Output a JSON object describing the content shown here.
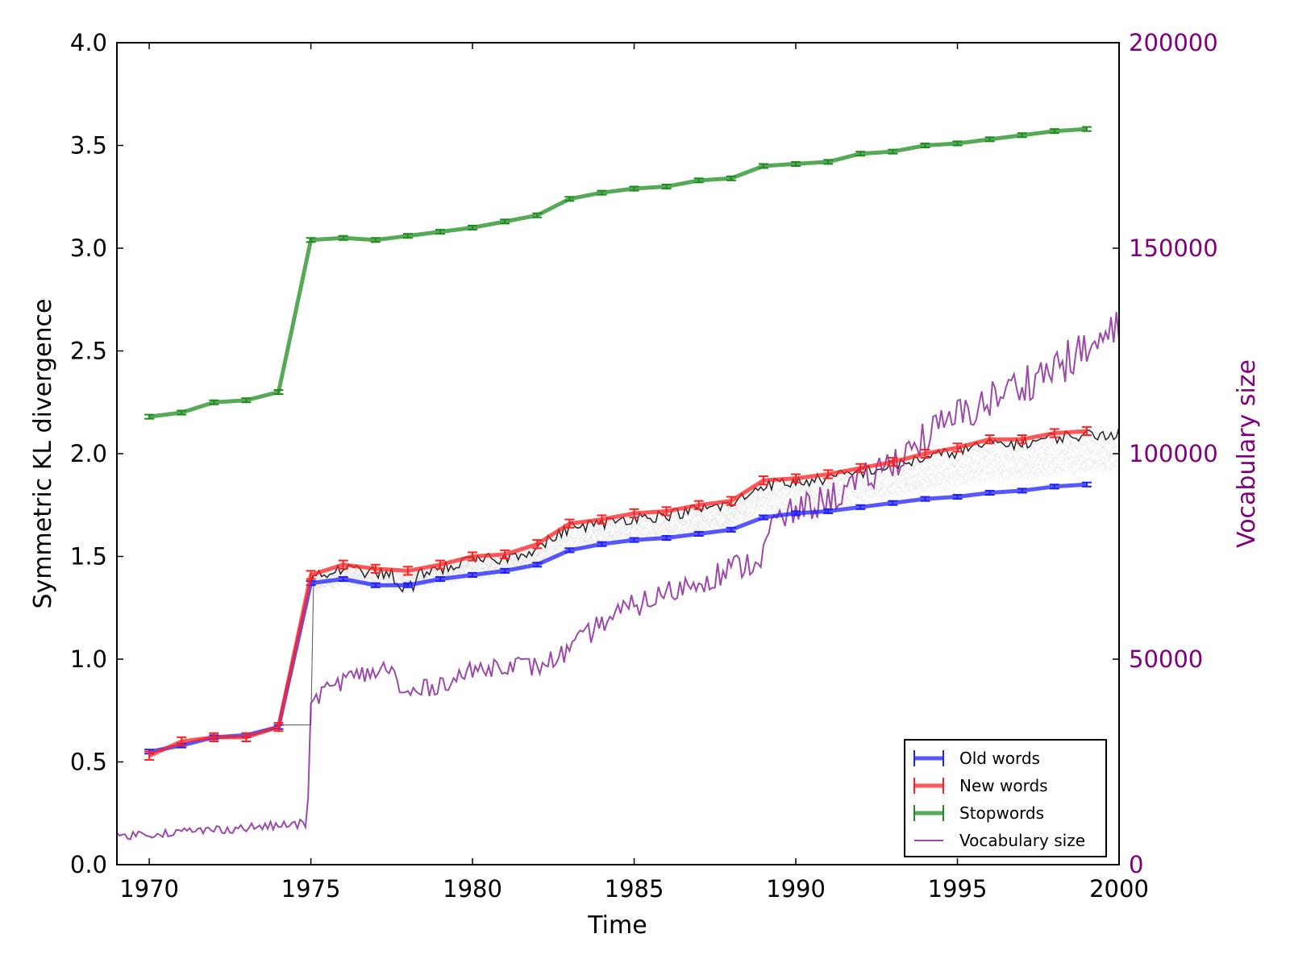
{
  "colors": {
    "old": "#1f1fff",
    "new": "#ff2020",
    "stop": "#1e8c1e",
    "vocab": "#8b2a9b",
    "vocab_axis": "#800080",
    "noise": "#000000"
  },
  "chart_data": {
    "type": "line",
    "xlabel": "Time",
    "ylabel": "Symmetric KL divergence",
    "y2label": "Vocabulary size",
    "xlim": [
      1969,
      2000
    ],
    "ylim": [
      0,
      4
    ],
    "y2lim": [
      0,
      200000
    ],
    "xticks": [
      1970,
      1975,
      1980,
      1985,
      1990,
      1995,
      2000
    ],
    "yticks": [
      "0.0",
      "0.5",
      "1.0",
      "1.5",
      "2.0",
      "2.5",
      "3.0",
      "3.5",
      "4.0"
    ],
    "y2ticks": [
      "0",
      "50000",
      "100000",
      "150000",
      "200000"
    ],
    "legend_position": "lower-right",
    "x_years": [
      1970,
      1971,
      1972,
      1973,
      1974,
      1975,
      1976,
      1977,
      1978,
      1979,
      1980,
      1981,
      1982,
      1983,
      1984,
      1985,
      1986,
      1987,
      1988,
      1989,
      1990,
      1991,
      1992,
      1993,
      1994,
      1995,
      1996,
      1997,
      1998,
      1999
    ],
    "series": [
      {
        "name": "Old words",
        "key": "old",
        "values": [
          0.55,
          0.58,
          0.62,
          0.63,
          0.67,
          1.37,
          1.39,
          1.36,
          1.36,
          1.39,
          1.41,
          1.43,
          1.46,
          1.53,
          1.56,
          1.58,
          1.59,
          1.61,
          1.63,
          1.69,
          1.71,
          1.72,
          1.74,
          1.76,
          1.78,
          1.79,
          1.81,
          1.82,
          1.84,
          1.85
        ]
      },
      {
        "name": "New words",
        "key": "new",
        "values": [
          0.53,
          0.6,
          0.62,
          0.62,
          0.67,
          1.41,
          1.46,
          1.44,
          1.43,
          1.46,
          1.5,
          1.51,
          1.56,
          1.66,
          1.68,
          1.71,
          1.72,
          1.75,
          1.77,
          1.87,
          1.88,
          1.9,
          1.93,
          1.96,
          2.0,
          2.03,
          2.07,
          2.07,
          2.1,
          2.11
        ]
      },
      {
        "name": "Stopwords",
        "key": "stop",
        "values": [
          2.18,
          2.2,
          2.25,
          2.26,
          2.3,
          3.04,
          3.05,
          3.04,
          3.06,
          3.08,
          3.1,
          3.13,
          3.16,
          3.24,
          3.27,
          3.29,
          3.3,
          3.33,
          3.34,
          3.4,
          3.41,
          3.42,
          3.46,
          3.47,
          3.5,
          3.51,
          3.53,
          3.55,
          3.57,
          3.58
        ]
      },
      {
        "name": "Vocabulary size",
        "key": "vocab",
        "axis": "right",
        "anchors": [
          [
            1969.0,
            7000
          ],
          [
            1970.0,
            7500
          ],
          [
            1971.0,
            8000
          ],
          [
            1972.0,
            8500
          ],
          [
            1973.0,
            9000
          ],
          [
            1974.0,
            9500
          ],
          [
            1974.9,
            10000
          ],
          [
            1975.0,
            40000
          ],
          [
            1976.0,
            45000
          ],
          [
            1977.0,
            47000
          ],
          [
            1977.5,
            48000
          ],
          [
            1977.8,
            41000
          ],
          [
            1979.0,
            44000
          ],
          [
            1980.0,
            47000
          ],
          [
            1981.0,
            49000
          ],
          [
            1982.0,
            48000
          ],
          [
            1983.0,
            52000
          ],
          [
            1984.0,
            59000
          ],
          [
            1985.0,
            63000
          ],
          [
            1986.0,
            66000
          ],
          [
            1987.0,
            69000
          ],
          [
            1988.0,
            72000
          ],
          [
            1988.9,
            74000
          ],
          [
            1989.3,
            83000
          ],
          [
            1990.0,
            86000
          ],
          [
            1991.0,
            89000
          ],
          [
            1992.0,
            93000
          ],
          [
            1993.0,
            98000
          ],
          [
            1994.0,
            104000
          ],
          [
            1995.0,
            109000
          ],
          [
            1996.0,
            113000
          ],
          [
            1997.0,
            117000
          ],
          [
            1998.0,
            121000
          ],
          [
            1999.0,
            125000
          ],
          [
            2000.0,
            130000
          ]
        ]
      }
    ]
  }
}
